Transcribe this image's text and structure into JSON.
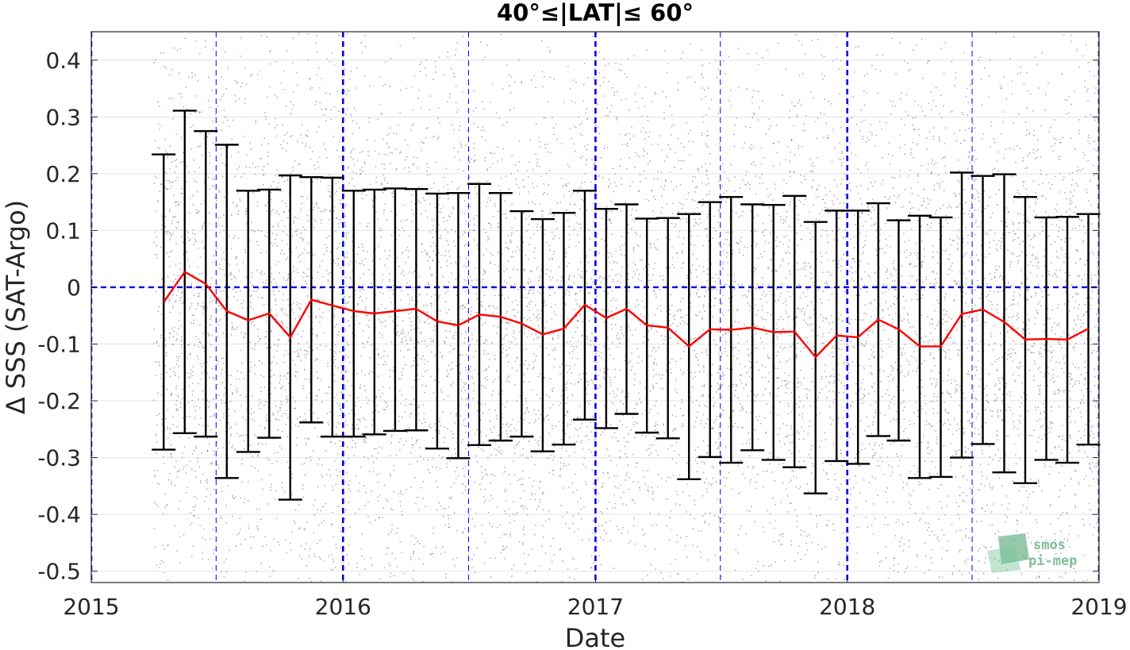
{
  "chart_data": {
    "type": "line",
    "title": "40°≤|LAT|≤ 60°",
    "xlabel": "Date",
    "ylabel": "Δ SSS (SAT-Argo)",
    "xlim": [
      "2015-01-01",
      "2019-01-01"
    ],
    "ylim": [
      -0.52,
      0.45
    ],
    "x_ticks": [
      "2015",
      "2016",
      "2017",
      "2018",
      "2019"
    ],
    "y_ticks": [
      "0.4",
      "0.3",
      "0.2",
      "0.1",
      "0",
      "-0.1",
      "-0.2",
      "-0.3",
      "-0.4",
      "-0.5"
    ],
    "grid": true,
    "yearly_reference_lines": [
      "2015-01-01",
      "2016-01-01",
      "2017-01-01",
      "2018-01-01",
      "2019-01-01"
    ],
    "midyear_reference_lines": [
      "2015-07-01",
      "2016-07-01",
      "2017-07-01",
      "2018-07-01"
    ],
    "zero_reference_line": 0,
    "reference_line_color": "#0000ee",
    "scatter_color": "#8c8c8c",
    "mean_line_color": "#ff0000",
    "errorbar_color": "#000000",
    "scatter_description": "dense cloud of individual SAT-Argo differences from 2015-04 to 2019-01",
    "series": [
      {
        "style": "errorbar-line",
        "x": [
          "2015-04",
          "2015-05",
          "2015-06",
          "2015-07",
          "2015-08",
          "2015-09",
          "2015-10",
          "2015-11",
          "2015-12",
          "2016-01",
          "2016-02",
          "2016-03",
          "2016-04",
          "2016-05",
          "2016-06",
          "2016-07",
          "2016-08",
          "2016-09",
          "2016-10",
          "2016-11",
          "2016-12",
          "2017-01",
          "2017-02",
          "2017-03",
          "2017-04",
          "2017-05",
          "2017-06",
          "2017-07",
          "2017-08",
          "2017-09",
          "2017-10",
          "2017-11",
          "2017-12",
          "2018-01",
          "2018-02",
          "2018-03",
          "2018-04",
          "2018-05",
          "2018-06",
          "2018-07",
          "2018-08",
          "2018-09",
          "2018-10",
          "2018-11",
          "2018-12"
        ],
        "values": [
          -0.026,
          0.027,
          0.006,
          -0.042,
          -0.058,
          -0.046,
          -0.088,
          -0.022,
          -0.032,
          -0.042,
          -0.046,
          -0.042,
          -0.038,
          -0.06,
          -0.067,
          -0.048,
          -0.052,
          -0.064,
          -0.083,
          -0.073,
          -0.031,
          -0.054,
          -0.038,
          -0.067,
          -0.071,
          -0.104,
          -0.074,
          -0.075,
          -0.071,
          -0.079,
          -0.078,
          -0.123,
          -0.085,
          -0.088,
          -0.057,
          -0.074,
          -0.104,
          -0.104,
          -0.047,
          -0.039,
          -0.061,
          -0.092,
          -0.091,
          -0.092,
          -0.073
        ],
        "upper": [
          0.234,
          0.311,
          0.275,
          0.251,
          0.17,
          0.172,
          0.197,
          0.194,
          0.193,
          0.17,
          0.172,
          0.174,
          0.173,
          0.165,
          0.166,
          0.182,
          0.166,
          0.134,
          0.12,
          0.131,
          0.17,
          0.138,
          0.146,
          0.121,
          0.122,
          0.129,
          0.15,
          0.159,
          0.146,
          0.145,
          0.161,
          0.115,
          0.135,
          0.135,
          0.148,
          0.118,
          0.126,
          0.123,
          0.202,
          0.196,
          0.199,
          0.159,
          0.123,
          0.124,
          0.129
        ],
        "lower": [
          -0.286,
          -0.257,
          -0.263,
          -0.336,
          -0.29,
          -0.265,
          -0.374,
          -0.238,
          -0.263,
          -0.263,
          -0.259,
          -0.253,
          -0.252,
          -0.284,
          -0.301,
          -0.278,
          -0.27,
          -0.263,
          -0.289,
          -0.277,
          -0.233,
          -0.248,
          -0.223,
          -0.256,
          -0.266,
          -0.338,
          -0.299,
          -0.309,
          -0.287,
          -0.304,
          -0.317,
          -0.363,
          -0.306,
          -0.311,
          -0.262,
          -0.27,
          -0.336,
          -0.334,
          -0.3,
          -0.276,
          -0.326,
          -0.345,
          -0.304,
          -0.309,
          -0.277
        ]
      }
    ]
  },
  "logo": {
    "line1": "smos",
    "line2": "pi-mep"
  }
}
